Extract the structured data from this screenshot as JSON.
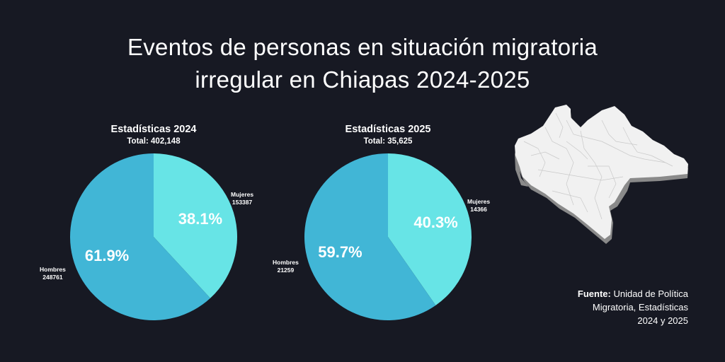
{
  "title": {
    "line1": "Eventos de personas en situación migratoria",
    "line2": "irregular en Chiapas 2024-2025"
  },
  "colors": {
    "background": "#171923",
    "mujeres": "#67E4E6",
    "hombres": "#41B6D6"
  },
  "chart_data": [
    {
      "type": "pie",
      "title": "Estadísticas 2024",
      "subtitle": "Total: 402,148",
      "total": 402148,
      "slices": [
        {
          "name": "Mujeres",
          "value": 153387,
          "percent": 38.1,
          "percent_label": "38.1%"
        },
        {
          "name": "Hombres",
          "value": 248761,
          "percent": 61.9,
          "percent_label": "61.9%"
        }
      ]
    },
    {
      "type": "pie",
      "title": "Estadísticas 2025",
      "subtitle": "Total: 35,625",
      "total": 35625,
      "slices": [
        {
          "name": "Mujeres",
          "value": 14366,
          "percent": 40.3,
          "percent_label": "40.3%"
        },
        {
          "name": "Hombres",
          "value": 21259,
          "percent": 59.7,
          "percent_label": "59.7%"
        }
      ]
    }
  ],
  "labels": {
    "pie2024": {
      "mujeres_name": "Mujeres",
      "mujeres_value": "153387",
      "hombres_name": "Hombres",
      "hombres_value": "248761"
    },
    "pie2025": {
      "mujeres_name": "Mujeres",
      "mujeres_value": "14366",
      "hombres_name": "Hombres",
      "hombres_value": "21259"
    }
  },
  "source": {
    "label": "Fuente:",
    "text_line1": " Unidad de Política",
    "text_line2": "Migratoria, Estadísticas",
    "text_line3": "2024 y 2025"
  },
  "map": {
    "region": "Chiapas"
  }
}
